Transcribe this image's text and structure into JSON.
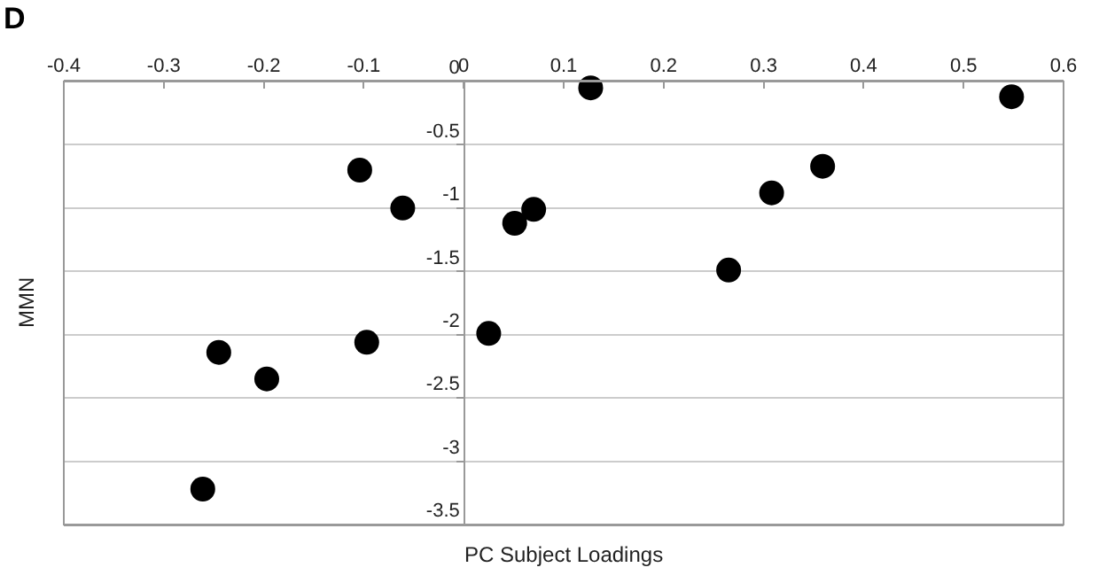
{
  "chart_data": {
    "type": "scatter",
    "xlabel": "PC Subject Loadings",
    "ylabel": "MMN",
    "annotations": [
      "D"
    ],
    "x": [
      -0.261,
      -0.245,
      -0.197,
      -0.104,
      -0.097,
      -0.061,
      0.025,
      0.051,
      0.07,
      0.127,
      0.265,
      0.308,
      0.359,
      0.548
    ],
    "values": [
      -3.22,
      -2.14,
      -2.35,
      -0.7,
      -2.06,
      -1.0,
      -1.99,
      -1.12,
      -1.01,
      -0.05,
      -1.49,
      -0.88,
      -0.67,
      -0.12
    ],
    "color": "#000000",
    "marker": "circle",
    "xlim": [
      -0.4,
      0.6
    ],
    "xticks": [
      -0.4,
      -0.3,
      -0.2,
      -0.1,
      0,
      0.1,
      0.2,
      0.3,
      0.4,
      0.5,
      0.6
    ],
    "ylim": [
      -3.5,
      0
    ],
    "yticks": [
      -3.5,
      -3,
      -2.5,
      -2,
      -1.5,
      -1,
      -0.5,
      0
    ],
    "grid": "y",
    "legend": false
  }
}
